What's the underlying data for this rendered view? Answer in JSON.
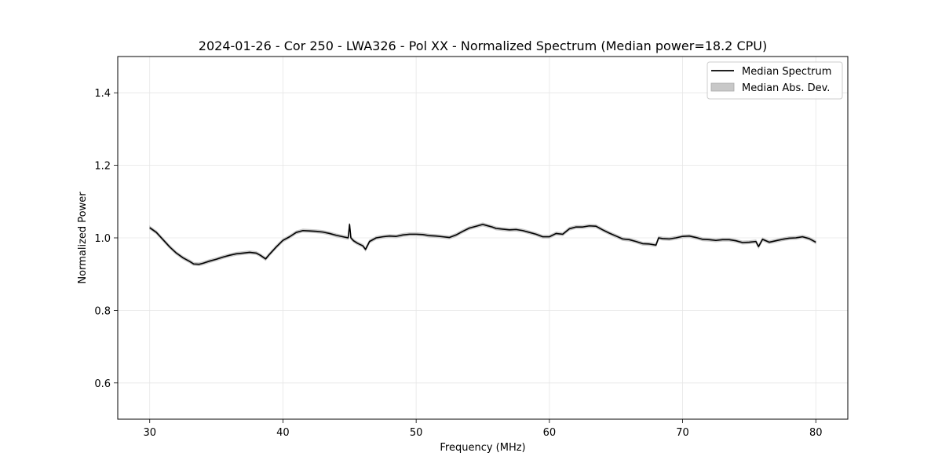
{
  "chart_data": {
    "type": "line",
    "title": "2024-01-26 - Cor 250 - LWA326 - Pol XX - Normalized Spectrum (Median power=18.2 CPU)",
    "xlabel": "Frequency (MHz)",
    "ylabel": "Normalized Power",
    "xlim": [
      27.6,
      82.4
    ],
    "ylim": [
      0.5,
      1.5
    ],
    "xticks": [
      30,
      40,
      50,
      60,
      70,
      80
    ],
    "yticks": [
      0.6,
      0.8,
      1.0,
      1.2,
      1.4
    ],
    "xtick_labels": [
      "30",
      "40",
      "50",
      "60",
      "70",
      "80"
    ],
    "ytick_labels": [
      "0.6",
      "0.8",
      "1.0",
      "1.2",
      "1.4"
    ],
    "grid": true,
    "legend_position": "top-right",
    "series": [
      {
        "name": "Median Spectrum",
        "color": "#000000",
        "x": [
          30.0,
          30.5,
          31.0,
          31.5,
          32.0,
          32.5,
          33.0,
          33.3,
          33.7,
          34.0,
          34.5,
          35.0,
          35.5,
          36.0,
          36.5,
          37.0,
          37.5,
          38.0,
          38.3,
          38.7,
          39.0,
          39.5,
          40.0,
          40.5,
          41.0,
          41.5,
          42.0,
          42.5,
          43.0,
          43.5,
          44.0,
          44.5,
          44.9,
          45.0,
          45.1,
          45.3,
          45.6,
          46.0,
          46.2,
          46.5,
          47.0,
          47.5,
          48.0,
          48.5,
          49.0,
          49.5,
          50.0,
          50.5,
          51.0,
          51.5,
          52.0,
          52.5,
          53.0,
          53.5,
          54.0,
          54.5,
          55.0,
          55.3,
          55.7,
          56.0,
          56.5,
          57.0,
          57.5,
          58.0,
          58.5,
          59.0,
          59.5,
          60.0,
          60.5,
          61.0,
          61.5,
          62.0,
          62.5,
          63.0,
          63.5,
          64.0,
          64.5,
          65.0,
          65.5,
          66.0,
          66.5,
          67.0,
          67.5,
          68.0,
          68.2,
          68.5,
          69.0,
          69.5,
          70.0,
          70.5,
          71.0,
          71.5,
          72.0,
          72.5,
          73.0,
          73.5,
          74.0,
          74.5,
          75.0,
          75.5,
          75.7,
          76.0,
          76.5,
          77.0,
          77.5,
          78.0,
          78.5,
          79.0,
          79.5,
          80.0
        ],
        "y": [
          1.028,
          1.015,
          0.995,
          0.975,
          0.958,
          0.945,
          0.935,
          0.928,
          0.927,
          0.93,
          0.936,
          0.941,
          0.947,
          0.952,
          0.956,
          0.958,
          0.96,
          0.958,
          0.952,
          0.942,
          0.955,
          0.975,
          0.993,
          1.003,
          1.015,
          1.02,
          1.019,
          1.018,
          1.016,
          1.012,
          1.007,
          1.003,
          1.0,
          1.037,
          1.0,
          0.992,
          0.985,
          0.978,
          0.968,
          0.99,
          1.0,
          1.003,
          1.005,
          1.004,
          1.008,
          1.01,
          1.01,
          1.009,
          1.006,
          1.005,
          1.003,
          1.001,
          1.008,
          1.018,
          1.027,
          1.032,
          1.037,
          1.034,
          1.03,
          1.026,
          1.024,
          1.022,
          1.023,
          1.02,
          1.015,
          1.01,
          1.003,
          1.003,
          1.012,
          1.01,
          1.025,
          1.03,
          1.03,
          1.033,
          1.032,
          1.022,
          1.013,
          1.005,
          0.997,
          0.995,
          0.99,
          0.984,
          0.983,
          0.98,
          1.0,
          0.998,
          0.997,
          1.0,
          1.004,
          1.005,
          1.001,
          0.996,
          0.995,
          0.993,
          0.995,
          0.995,
          0.992,
          0.987,
          0.988,
          0.99,
          0.976,
          0.996,
          0.988,
          0.992,
          0.996,
          0.999,
          1.0,
          1.003,
          0.998,
          0.988
        ]
      },
      {
        "name": "Median Abs. Dev.",
        "color": "#c8c8c8",
        "band_width": 0.004
      }
    ]
  }
}
